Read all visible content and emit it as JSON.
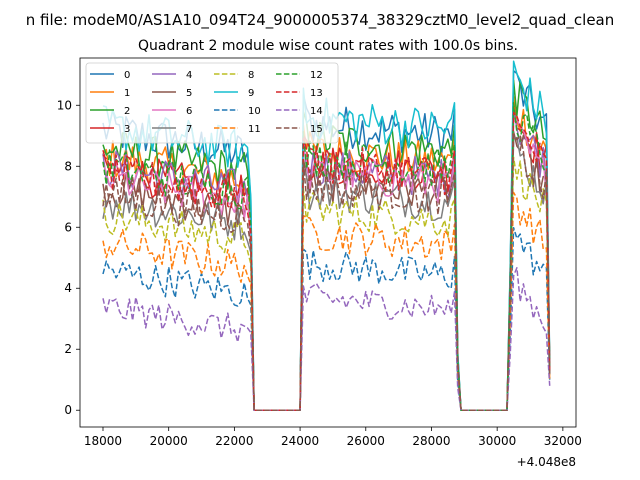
{
  "figure": {
    "suptitle": "n file: modeM0/AS1A10_094T24_9000005374_38329cztM0_level2_quad_clean",
    "offset_text": "+4.048e8"
  },
  "chart_data": {
    "type": "line",
    "title": "Quadrant 2 module wise count rates with 100.0s bins.",
    "xlabel": "",
    "ylabel": "",
    "x_offset": 404800000,
    "xlim": [
      17300,
      32400
    ],
    "ylim": [
      -0.55,
      11.55
    ],
    "xticks": [
      18000,
      20000,
      22000,
      24000,
      26000,
      28000,
      30000,
      32000
    ],
    "xtick_labels": [
      "18000",
      "20000",
      "22000",
      "24000",
      "26000",
      "28000",
      "30000",
      "32000"
    ],
    "yticks": [
      0,
      2,
      4,
      6,
      8,
      10
    ],
    "ytick_labels": [
      "0",
      "2",
      "4",
      "6",
      "8",
      "10"
    ],
    "grid": false,
    "legend_position": "top-left",
    "legend_columns": 4,
    "segments": [
      {
        "start": 18000,
        "end": 22400,
        "type": "data"
      },
      {
        "start": 22600,
        "end": 24000,
        "type": "gap"
      },
      {
        "start": 24100,
        "end": 28700,
        "type": "data"
      },
      {
        "start": 28800,
        "end": 30300,
        "type": "gap"
      },
      {
        "start": 30400,
        "end": 31500,
        "type": "data"
      },
      {
        "start": 31600,
        "end": 31600,
        "type": "end"
      }
    ],
    "series": [
      {
        "name": "0",
        "color": "#1f77b4",
        "dash": "solid",
        "segment_levels": [
          9.2,
          9.4,
          10.6
        ],
        "end_value": 1.5
      },
      {
        "name": "1",
        "color": "#ff7f0e",
        "dash": "solid",
        "segment_levels": [
          8.3,
          8.5,
          9.8
        ],
        "end_value": 1.3
      },
      {
        "name": "2",
        "color": "#2ca02c",
        "dash": "solid",
        "segment_levels": [
          8.6,
          8.9,
          10.3
        ],
        "end_value": 1.4
      },
      {
        "name": "3",
        "color": "#d62728",
        "dash": "solid",
        "segment_levels": [
          7.9,
          8.2,
          9.5
        ],
        "end_value": 1.3
      },
      {
        "name": "4",
        "color": "#9467bd",
        "dash": "solid",
        "segment_levels": [
          8.0,
          8.0,
          9.4
        ],
        "end_value": 1.3
      },
      {
        "name": "5",
        "color": "#8c564b",
        "dash": "solid",
        "segment_levels": [
          7.3,
          7.5,
          8.7
        ],
        "end_value": 1.2
      },
      {
        "name": "6",
        "color": "#e377c2",
        "dash": "solid",
        "segment_levels": [
          7.6,
          7.8,
          9.0
        ],
        "end_value": 1.2
      },
      {
        "name": "7",
        "color": "#7f7f7f",
        "dash": "solid",
        "segment_levels": [
          6.9,
          7.2,
          8.5
        ],
        "end_value": 1.2
      },
      {
        "name": "8",
        "color": "#bcbd22",
        "dash": "dashed",
        "segment_levels": [
          6.4,
          6.6,
          7.9
        ],
        "end_value": 1.1
      },
      {
        "name": "9",
        "color": "#17becf",
        "dash": "solid",
        "segment_levels": [
          9.3,
          9.6,
          10.9
        ],
        "end_value": 1.4
      },
      {
        "name": "10",
        "color": "#1f77b4",
        "dash": "dashed",
        "segment_levels": [
          4.6,
          4.8,
          5.7
        ],
        "end_value": 1.0
      },
      {
        "name": "11",
        "color": "#ff7f0e",
        "dash": "dashed",
        "segment_levels": [
          5.5,
          5.8,
          6.8
        ],
        "end_value": 1.0
      },
      {
        "name": "12",
        "color": "#2ca02c",
        "dash": "dashed",
        "segment_levels": [
          8.0,
          8.3,
          9.6
        ],
        "end_value": 1.3
      },
      {
        "name": "13",
        "color": "#d62728",
        "dash": "dashed",
        "segment_levels": [
          7.8,
          8.1,
          9.3
        ],
        "end_value": 1.3
      },
      {
        "name": "14",
        "color": "#9467bd",
        "dash": "dashed",
        "segment_levels": [
          3.4,
          3.7,
          4.2
        ],
        "end_value": 0.8
      },
      {
        "name": "15",
        "color": "#8c564b",
        "dash": "dashed",
        "segment_levels": [
          7.1,
          7.4,
          8.6
        ],
        "end_value": 1.2
      }
    ]
  }
}
